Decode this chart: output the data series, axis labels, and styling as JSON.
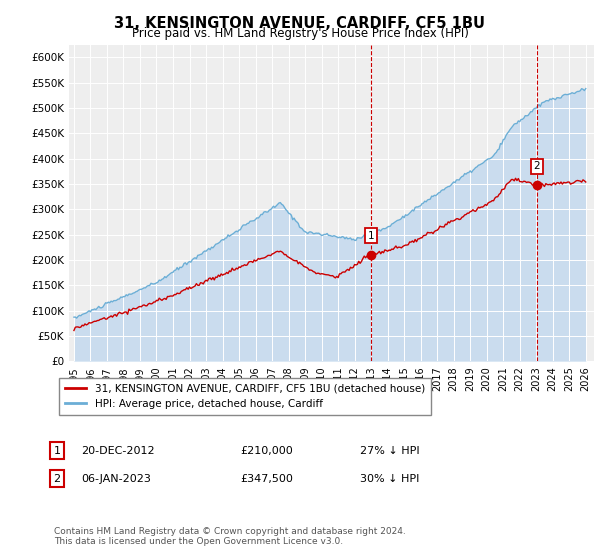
{
  "title": "31, KENSINGTON AVENUE, CARDIFF, CF5 1BU",
  "subtitle": "Price paid vs. HM Land Registry's House Price Index (HPI)",
  "ylabel_ticks": [
    "£0",
    "£50K",
    "£100K",
    "£150K",
    "£200K",
    "£250K",
    "£300K",
    "£350K",
    "£400K",
    "£450K",
    "£500K",
    "£550K",
    "£600K"
  ],
  "ytick_values": [
    0,
    50000,
    100000,
    150000,
    200000,
    250000,
    300000,
    350000,
    400000,
    450000,
    500000,
    550000,
    600000
  ],
  "ylim": [
    0,
    625000
  ],
  "xlim_start": 1994.7,
  "xlim_end": 2026.5,
  "xticks": [
    1995,
    1996,
    1997,
    1998,
    1999,
    2000,
    2001,
    2002,
    2003,
    2004,
    2005,
    2006,
    2007,
    2008,
    2009,
    2010,
    2011,
    2012,
    2013,
    2014,
    2015,
    2016,
    2017,
    2018,
    2019,
    2020,
    2021,
    2022,
    2023,
    2024,
    2025,
    2026
  ],
  "hpi_color": "#6baed6",
  "hpi_fill_color": "#c6dbef",
  "price_paid_color": "#cc0000",
  "marker1_x": 2012.97,
  "marker1_y": 210000,
  "marker2_x": 2023.03,
  "marker2_y": 347500,
  "legend_label1": "31, KENSINGTON AVENUE, CARDIFF, CF5 1BU (detached house)",
  "legend_label2": "HPI: Average price, detached house, Cardiff",
  "note1_num": "1",
  "note1_date": "20-DEC-2012",
  "note1_price": "£210,000",
  "note1_hpi": "27% ↓ HPI",
  "note2_num": "2",
  "note2_date": "06-JAN-2023",
  "note2_price": "£347,500",
  "note2_hpi": "30% ↓ HPI",
  "footer": "Contains HM Land Registry data © Crown copyright and database right 2024.\nThis data is licensed under the Open Government Licence v3.0.",
  "background_color": "#eeeeee"
}
